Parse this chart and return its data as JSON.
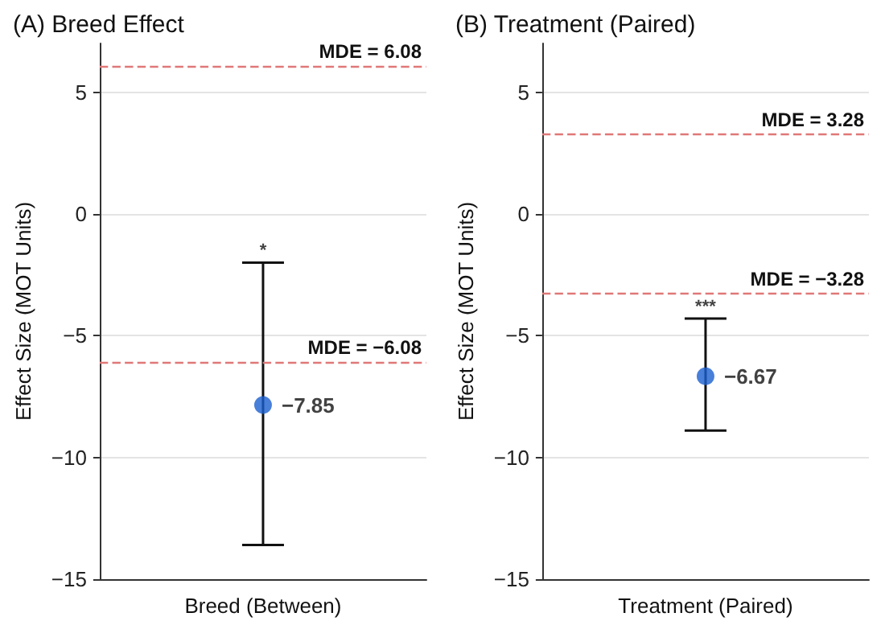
{
  "chart_data": [
    {
      "type": "scatter",
      "title": "(A) Breed Effect",
      "ylabel": "Effect Size (MOT Units)",
      "categories": [
        "Breed (Between)"
      ],
      "series": [
        {
          "color": "#1a5fd0",
          "values": [
            -7.85
          ],
          "errors": [
            [
              -13.6,
              -2.0
            ]
          ],
          "value_labels": [
            "−7.85"
          ]
        }
      ],
      "ylim": [
        -15,
        7
      ],
      "yticks": [
        -15,
        -10,
        -5,
        0,
        5
      ],
      "grid": "y",
      "marker": "circle",
      "ref_lines": [
        {
          "axis": "y",
          "value": 6.08,
          "label": "MDE = 6.08",
          "color": "#e07878",
          "line_style": "dashed"
        },
        {
          "axis": "y",
          "value": -6.08,
          "label": "MDE = −6.08",
          "color": "#e07878",
          "line_style": "dashed"
        }
      ],
      "annotations": [
        {
          "text": "*",
          "x": "Breed (Between)",
          "y": -2.0
        }
      ]
    },
    {
      "type": "scatter",
      "title": "(B) Treatment (Paired)",
      "ylabel": "Effect Size (MOT Units)",
      "categories": [
        "Treatment (Paired)"
      ],
      "series": [
        {
          "color": "#1a5fd0",
          "values": [
            -6.67
          ],
          "errors": [
            [
              -8.9,
              -4.3
            ]
          ],
          "value_labels": [
            "−6.67"
          ]
        }
      ],
      "ylim": [
        -15,
        7
      ],
      "yticks": [
        -15,
        -10,
        -5,
        0,
        5
      ],
      "grid": "y",
      "marker": "circle",
      "ref_lines": [
        {
          "axis": "y",
          "value": 3.28,
          "label": "MDE = 3.28",
          "color": "#e07878",
          "line_style": "dashed"
        },
        {
          "axis": "y",
          "value": -3.28,
          "label": "MDE = −3.28",
          "color": "#e07878",
          "line_style": "dashed"
        }
      ],
      "annotations": [
        {
          "text": "***",
          "x": "Treatment (Paired)",
          "y": -4.3
        }
      ]
    }
  ]
}
